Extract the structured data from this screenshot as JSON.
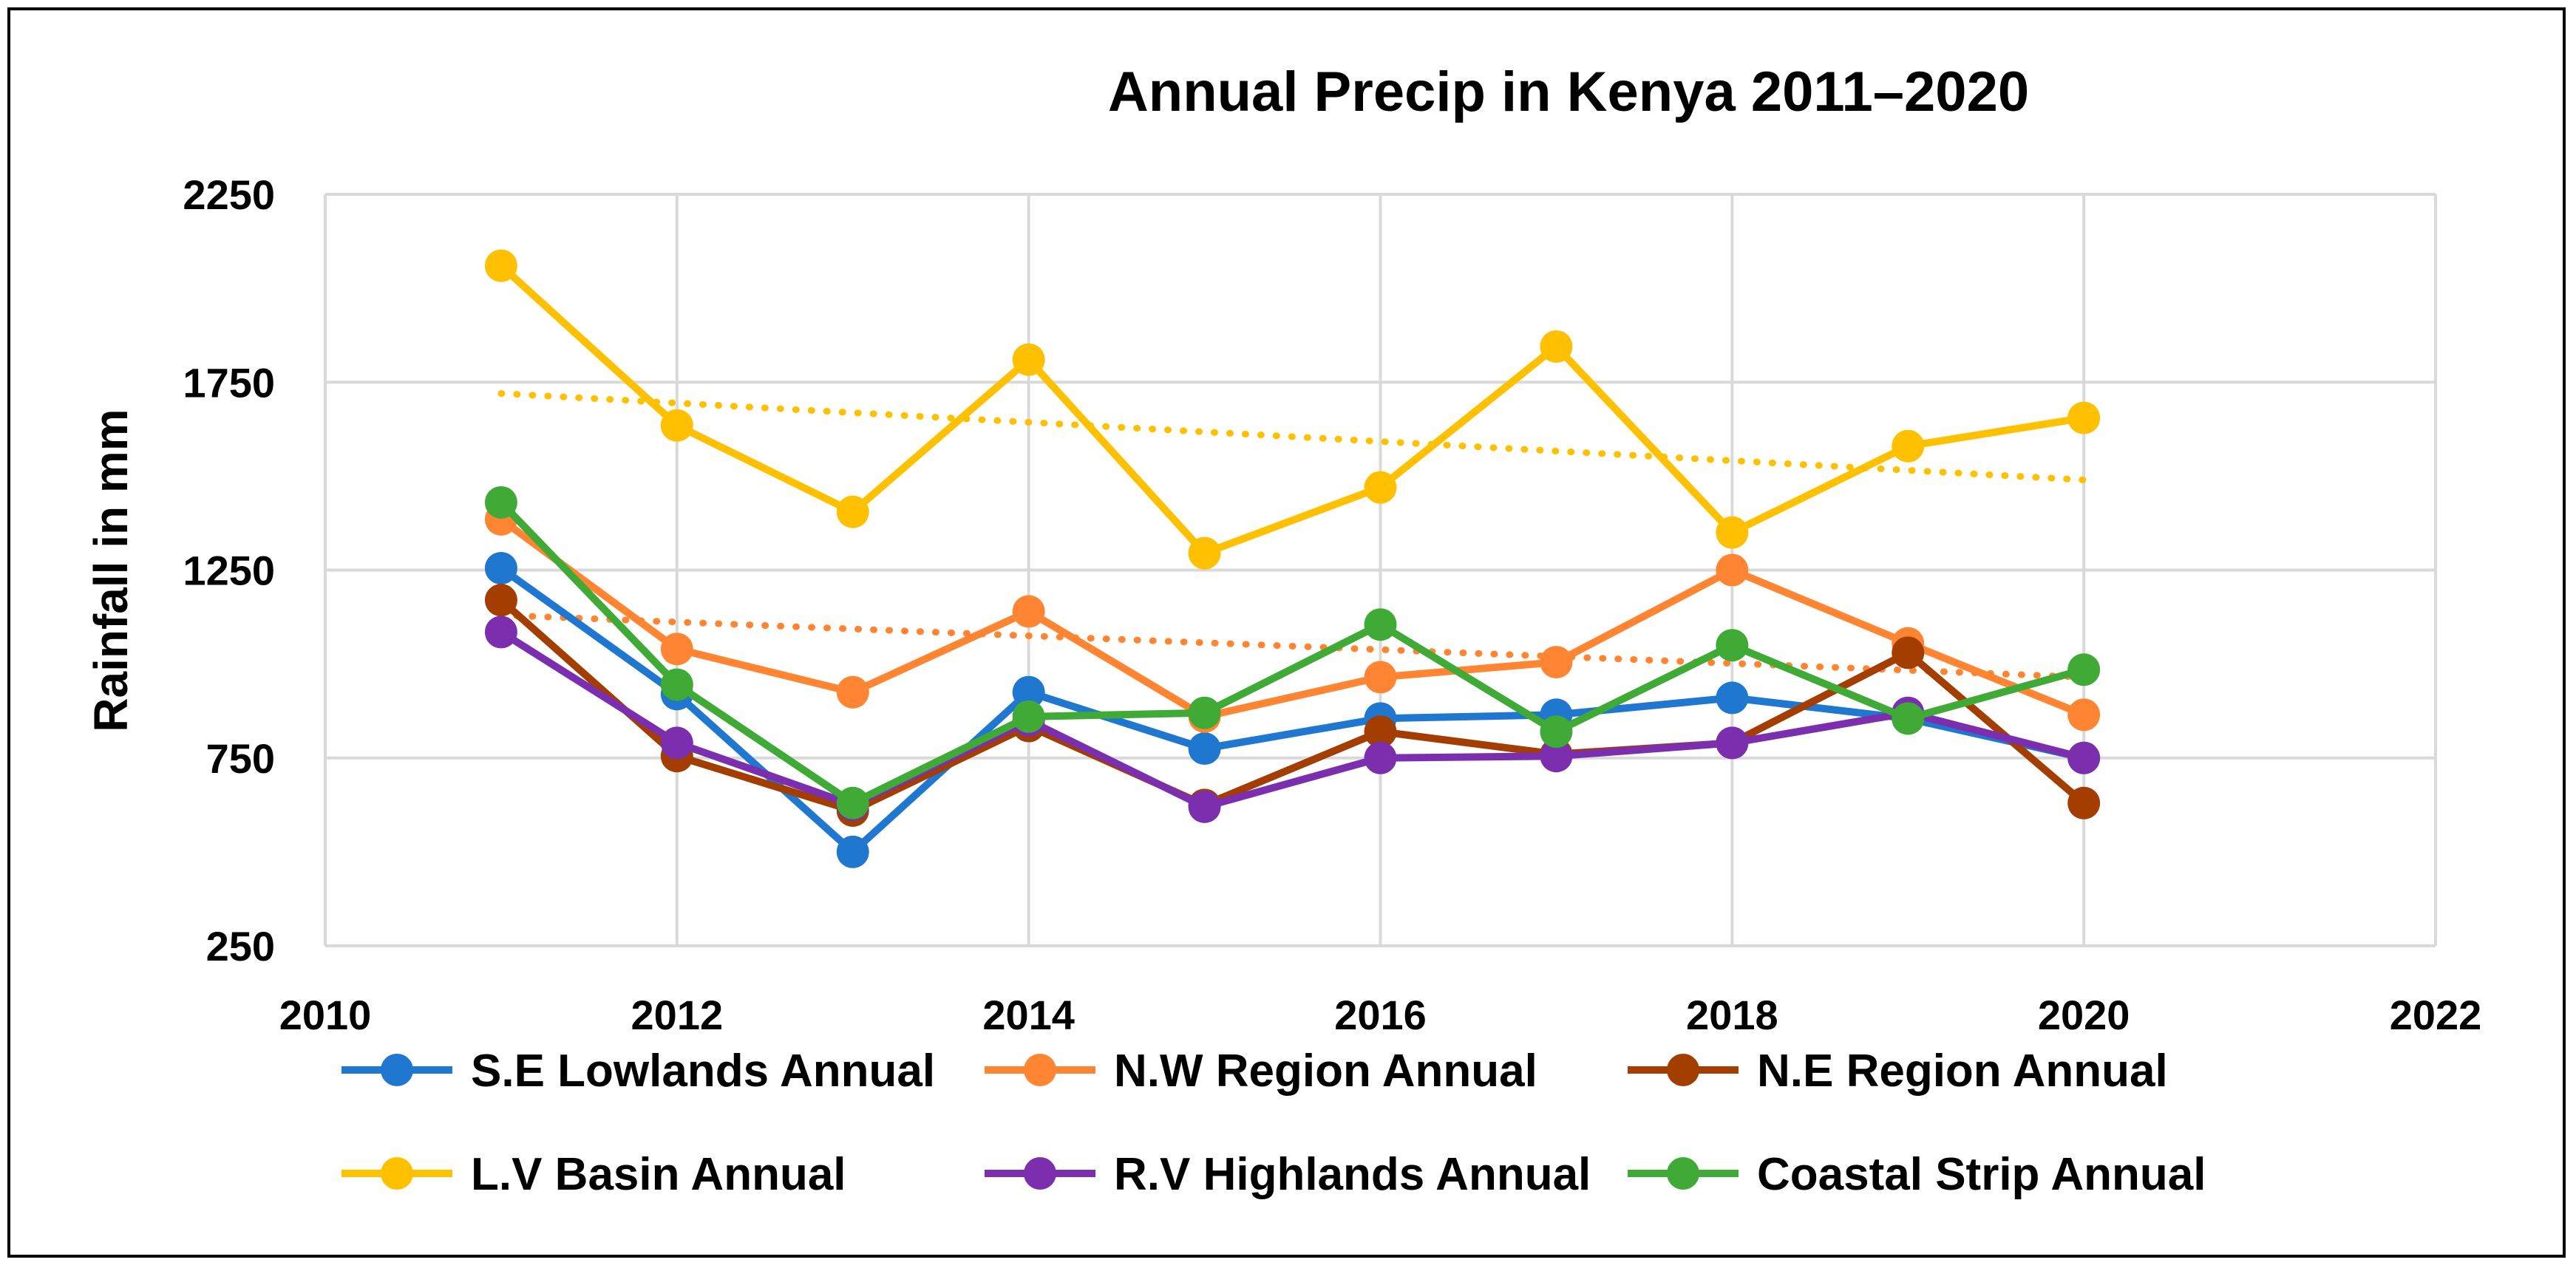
{
  "chart_data": {
    "type": "line",
    "title": "Annual Precip in Kenya 2011–2020",
    "xlabel": "",
    "ylabel": "Rainfall in mm",
    "xlim": [
      2010,
      2022
    ],
    "ylim": [
      250,
      2250
    ],
    "x_ticks": [
      2010,
      2012,
      2014,
      2016,
      2018,
      2020,
      2022
    ],
    "y_ticks": [
      250,
      750,
      1250,
      1750,
      2250
    ],
    "grid": true,
    "legend_position": "bottom",
    "x": [
      2011,
      2012,
      2013,
      2014,
      2015,
      2016,
      2017,
      2018,
      2019,
      2020
    ],
    "series": [
      {
        "name": "S.E Lowlands Annual",
        "color": "#1F77D0",
        "values": [
          1255,
          920,
          500,
          925,
          775,
          855,
          865,
          910,
          855,
          750
        ]
      },
      {
        "name": "N.W Region Annual",
        "color": "#FF8533",
        "values": [
          1385,
          1040,
          925,
          1140,
          860,
          965,
          1005,
          1250,
          1055,
          865
        ]
      },
      {
        "name": "N.E Region Annual",
        "color": "#A33D00",
        "values": [
          1170,
          755,
          610,
          835,
          625,
          820,
          760,
          790,
          1030,
          630
        ]
      },
      {
        "name": "L.V Basin Annual",
        "color": "#FFC000",
        "values": [
          2060,
          1635,
          1405,
          1810,
          1295,
          1470,
          1845,
          1350,
          1580,
          1655
        ]
      },
      {
        "name": "R.V Highlands Annual",
        "color": "#7B2FAF",
        "values": [
          1085,
          790,
          625,
          850,
          620,
          750,
          755,
          790,
          870,
          750
        ]
      },
      {
        "name": "Coastal Strip Annual",
        "color": "#3FAA35",
        "values": [
          1430,
          945,
          630,
          860,
          870,
          1105,
          820,
          1050,
          855,
          985
        ]
      }
    ],
    "trendlines": [
      {
        "series": "L.V Basin Annual",
        "color": "#FFC000",
        "x": [
          2011,
          2020
        ],
        "values": [
          1720,
          1490
        ]
      },
      {
        "series": "N.W Region Annual",
        "color": "#FF8533",
        "x": [
          2011,
          2020
        ],
        "values": [
          1130,
          965
        ]
      }
    ]
  }
}
